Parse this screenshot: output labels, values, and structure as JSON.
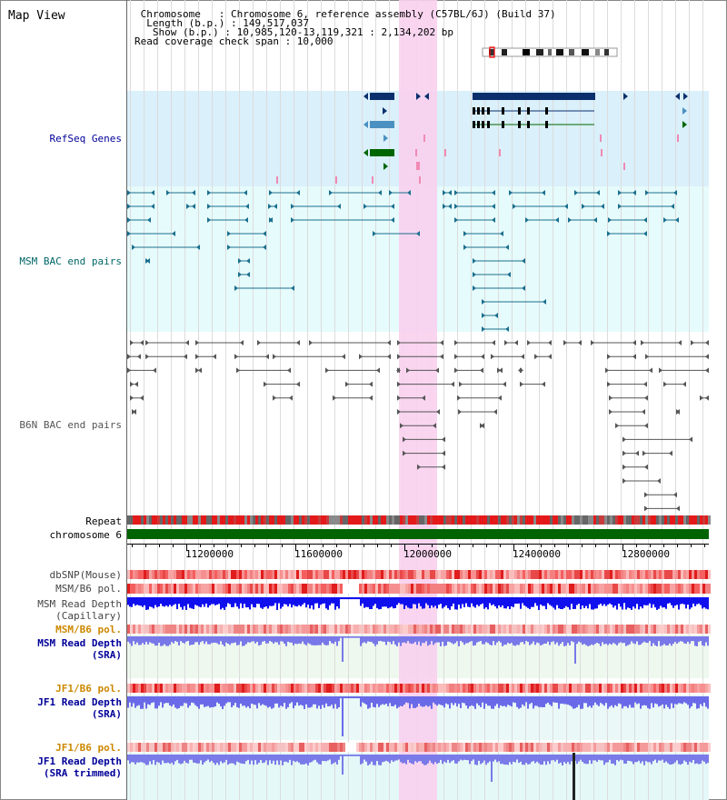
{
  "title": "Map View",
  "info": {
    "line1": " Chromosome   : Chromosome 6, reference assembly (C57BL/6J) (Build 37)",
    "line2": "  Length (b.p.) : 149,517,037",
    "line3": "   Show (b.p.) : 10,985,120-13,119,321 : 2,134,202 bp",
    "line4": "Read coverage check span : 10,000"
  },
  "tracks": {
    "refseq": "RefSeq Genes",
    "msm_bac": "MSM BAC end pairs",
    "b6n_bac": "B6N BAC end pairs",
    "repeat": "Repeat",
    "chromosome": "chromosome 6",
    "dbsnp": "dbSNP(Mouse)",
    "msm_b6_pol_1": "MSM/B6 pol.",
    "msm_depth_cap_1": "MSM Read Depth",
    "msm_depth_cap_2": "(Capillary)",
    "msm_b6_pol_2": "MSM/B6 pol.",
    "msm_depth_sra_1": "MSM Read Depth",
    "msm_depth_sra_2": "(SRA)",
    "jf1_b6_pol_1": "JF1/B6 pol.",
    "jf1_depth_sra_1": "JF1 Read Depth",
    "jf1_depth_sra_2": "(SRA)",
    "jf1_b6_pol_2": "JF1/B6 pol.",
    "jf1_depth_trim_1": "JF1 Read Depth",
    "jf1_depth_trim_2": "(SRA trimmed)"
  },
  "axis": {
    "ticks": [
      "11200000",
      "11600000",
      "12000000",
      "12400000",
      "12800000"
    ]
  },
  "colors": {
    "highlight": "#f8d0ee",
    "refseq_bg": "#daf0fb",
    "bac_bg": "#e6fbfb",
    "gene_navy": "#0b2f6c",
    "gene_blue": "#4a90c0",
    "gene_green": "#006600",
    "msm_line": "#1a6f8e",
    "b6n_line": "#555555",
    "chrom_green": "#006400",
    "depth_blue": "#1010ee",
    "depth_light": "#6c6cf0",
    "label_navy": "#000099",
    "label_teal": "#006666",
    "label_orange": "#cc8800"
  }
}
